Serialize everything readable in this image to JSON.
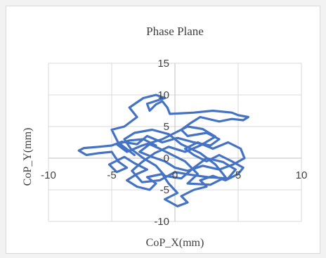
{
  "chart_data": {
    "type": "scatter",
    "title": "Phase Plane",
    "xlabel": "CoP_X(mm)",
    "ylabel": "CoP_Y(mm)",
    "xlim": [
      -10,
      10
    ],
    "ylim": [
      -10,
      15
    ],
    "x_ticks": [
      "-10",
      "-5",
      "0",
      "5",
      "10"
    ],
    "y_ticks": [
      "-10",
      "-5",
      "0",
      "5",
      "10",
      "15"
    ],
    "grid": true,
    "legend": "none",
    "series_color": "#4472c4",
    "points": [
      [
        -3.2,
        0.5
      ],
      [
        -4.5,
        2.5
      ],
      [
        -5.0,
        4.5
      ],
      [
        -4.0,
        5.0
      ],
      [
        -3.0,
        6.5
      ],
      [
        -3.6,
        8.0
      ],
      [
        -2.5,
        9.5
      ],
      [
        -1.5,
        10.0
      ],
      [
        -0.8,
        9.5
      ],
      [
        -2.2,
        8.6
      ],
      [
        -2.0,
        7.5
      ],
      [
        -1.5,
        8.5
      ],
      [
        -1.0,
        9.0
      ],
      [
        -0.6,
        8.0
      ],
      [
        -0.4,
        7.0
      ],
      [
        1.5,
        7.2
      ],
      [
        3.0,
        7.5
      ],
      [
        4.5,
        7.2
      ],
      [
        5.0,
        6.8
      ],
      [
        5.8,
        6.5
      ],
      [
        5.4,
        6.0
      ],
      [
        4.5,
        6.2
      ],
      [
        3.5,
        5.8
      ],
      [
        2.0,
        6.5
      ],
      [
        1.2,
        5.5
      ],
      [
        0.5,
        4.5
      ],
      [
        1.0,
        3.5
      ],
      [
        2.5,
        4.0
      ],
      [
        3.5,
        3.0
      ],
      [
        2.8,
        2.0
      ],
      [
        1.5,
        2.5
      ],
      [
        0.2,
        3.2
      ],
      [
        -1.0,
        2.5
      ],
      [
        -2.2,
        3.5
      ],
      [
        -3.0,
        2.2
      ],
      [
        -4.2,
        2.6
      ],
      [
        -5.0,
        2.0
      ],
      [
        -6.0,
        1.8
      ],
      [
        -7.2,
        1.6
      ],
      [
        -7.6,
        1.2
      ],
      [
        -7.0,
        0.5
      ],
      [
        -6.0,
        0.8
      ],
      [
        -5.0,
        1.0
      ],
      [
        -4.5,
        -0.5
      ],
      [
        -3.8,
        -1.5
      ],
      [
        -4.6,
        -2.2
      ],
      [
        -5.2,
        -1.0
      ],
      [
        -4.0,
        0.2
      ],
      [
        -3.2,
        -0.8
      ],
      [
        -2.2,
        -1.8
      ],
      [
        -3.0,
        -2.5
      ],
      [
        -3.8,
        -3.5
      ],
      [
        -3.0,
        -4.5
      ],
      [
        -2.0,
        -5.0
      ],
      [
        -1.5,
        -4.0
      ],
      [
        -2.2,
        -3.0
      ],
      [
        -1.0,
        -2.5
      ],
      [
        -0.5,
        -4.0
      ],
      [
        0.2,
        -5.5
      ],
      [
        -0.8,
        -6.5
      ],
      [
        0.2,
        -7.6
      ],
      [
        1.0,
        -7.0
      ],
      [
        0.5,
        -6.0
      ],
      [
        1.5,
        -5.0
      ],
      [
        2.5,
        -4.5
      ],
      [
        2.0,
        -3.5
      ],
      [
        3.0,
        -2.8
      ],
      [
        4.0,
        -3.5
      ],
      [
        5.0,
        -2.5
      ],
      [
        5.4,
        -1.5
      ],
      [
        4.5,
        -0.5
      ],
      [
        3.5,
        0.5
      ],
      [
        2.5,
        -0.5
      ],
      [
        1.5,
        0.5
      ],
      [
        0.8,
        1.5
      ],
      [
        1.8,
        2.5
      ],
      [
        3.0,
        1.5
      ],
      [
        4.2,
        2.5
      ],
      [
        5.2,
        1.5
      ],
      [
        5.5,
        0.0
      ],
      [
        4.6,
        -1.0
      ],
      [
        3.5,
        -1.8
      ],
      [
        2.2,
        -1.2
      ],
      [
        1.0,
        -2.0
      ],
      [
        0.0,
        -1.5
      ],
      [
        -0.8,
        -0.5
      ],
      [
        -1.8,
        0.2
      ],
      [
        -2.8,
        1.0
      ],
      [
        -2.0,
        2.2
      ],
      [
        -1.2,
        1.5
      ],
      [
        -0.2,
        0.5
      ],
      [
        0.8,
        -0.5
      ],
      [
        1.8,
        -2.5
      ],
      [
        1.0,
        -4.0
      ],
      [
        2.8,
        -4.2
      ],
      [
        4.0,
        -3.0
      ],
      [
        3.2,
        -1.0
      ],
      [
        2.0,
        0.8
      ],
      [
        0.5,
        2.2
      ],
      [
        -0.5,
        3.8
      ],
      [
        -1.8,
        4.5
      ],
      [
        -3.2,
        4.0
      ],
      [
        -4.0,
        3.0
      ],
      [
        -3.5,
        1.5
      ],
      [
        -2.5,
        0.0
      ],
      [
        -1.5,
        -1.2
      ],
      [
        -0.8,
        -2.8
      ],
      [
        0.5,
        -3.2
      ],
      [
        1.5,
        -1.5
      ],
      [
        2.5,
        0.0
      ],
      [
        3.8,
        -0.6
      ],
      [
        4.8,
        -1.8
      ],
      [
        4.2,
        -3.2
      ],
      [
        2.6,
        -3.0
      ],
      [
        1.2,
        -2.6
      ],
      [
        0.0,
        -2.2
      ],
      [
        -1.2,
        -3.5
      ],
      [
        -2.6,
        -3.8
      ],
      [
        -3.4,
        -2.0
      ],
      [
        -2.6,
        -0.6
      ],
      [
        -1.6,
        0.8
      ],
      [
        -0.5,
        1.8
      ],
      [
        0.8,
        1.0
      ],
      [
        2.0,
        2.0
      ],
      [
        3.2,
        3.4
      ],
      [
        2.2,
        4.6
      ],
      [
        1.0,
        5.0
      ],
      [
        0.0,
        4.0
      ],
      [
        -1.0,
        3.0
      ],
      [
        -2.6,
        2.0
      ],
      [
        -3.8,
        1.0
      ],
      [
        -4.6,
        2.2
      ],
      [
        -3.6,
        2.8
      ],
      [
        -2.5,
        3.0
      ],
      [
        -1.5,
        2.0
      ]
    ]
  }
}
